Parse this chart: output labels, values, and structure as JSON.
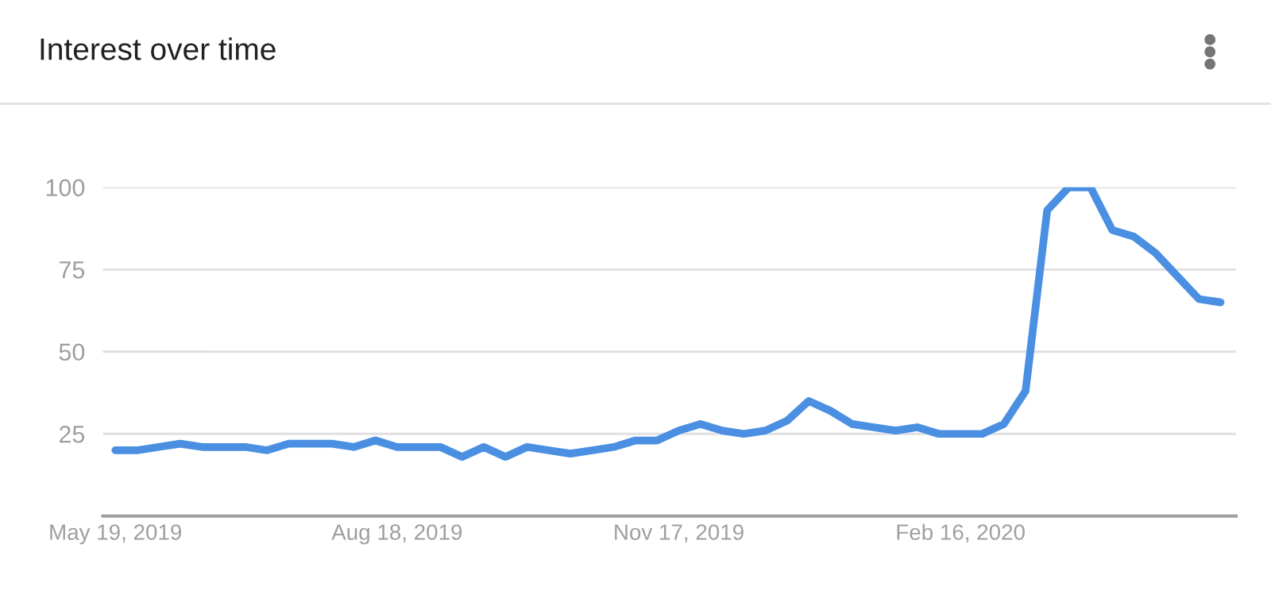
{
  "chart_data": {
    "type": "line",
    "title": "Interest over time",
    "x": [
      "2019-05-19",
      "2019-05-26",
      "2019-06-02",
      "2019-06-09",
      "2019-06-16",
      "2019-06-23",
      "2019-06-30",
      "2019-07-07",
      "2019-07-14",
      "2019-07-21",
      "2019-07-28",
      "2019-08-04",
      "2019-08-11",
      "2019-08-18",
      "2019-08-25",
      "2019-09-01",
      "2019-09-08",
      "2019-09-15",
      "2019-09-22",
      "2019-09-29",
      "2019-10-06",
      "2019-10-13",
      "2019-10-20",
      "2019-10-27",
      "2019-11-03",
      "2019-11-10",
      "2019-11-17",
      "2019-11-24",
      "2019-12-01",
      "2019-12-08",
      "2019-12-15",
      "2019-12-22",
      "2019-12-29",
      "2020-01-05",
      "2020-01-12",
      "2020-01-19",
      "2020-01-26",
      "2020-02-02",
      "2020-02-09",
      "2020-02-16",
      "2020-02-23",
      "2020-03-01",
      "2020-03-08",
      "2020-03-15",
      "2020-03-22",
      "2020-03-29",
      "2020-04-05",
      "2020-04-12",
      "2020-04-19",
      "2020-04-26",
      "2020-05-03",
      "2020-05-10"
    ],
    "series": [
      {
        "color": "#4a8fe2",
        "values": [
          20,
          20,
          21,
          22,
          21,
          21,
          21,
          20,
          22,
          22,
          22,
          21,
          23,
          21,
          21,
          21,
          18,
          21,
          18,
          21,
          20,
          19,
          20,
          21,
          23,
          23,
          26,
          28,
          26,
          25,
          26,
          29,
          35,
          32,
          28,
          27,
          26,
          27,
          25,
          25,
          25,
          28,
          38,
          93,
          100,
          100,
          87,
          85,
          80,
          73,
          66,
          65
        ]
      }
    ],
    "xlim": [
      "2019-05-15",
      "2020-05-15"
    ],
    "xticks": [
      {
        "value": "2019-05-19",
        "label": "May 19, 2019"
      },
      {
        "value": "2019-08-18",
        "label": "Aug 18, 2019"
      },
      {
        "value": "2019-11-17",
        "label": "Nov 17, 2019"
      },
      {
        "value": "2020-02-16",
        "label": "Feb 16, 2020"
      }
    ],
    "ylim": [
      0,
      100
    ],
    "yticks": [
      25,
      50,
      75,
      100
    ],
    "grid": "y",
    "line_style": "solid",
    "marker": "none"
  }
}
